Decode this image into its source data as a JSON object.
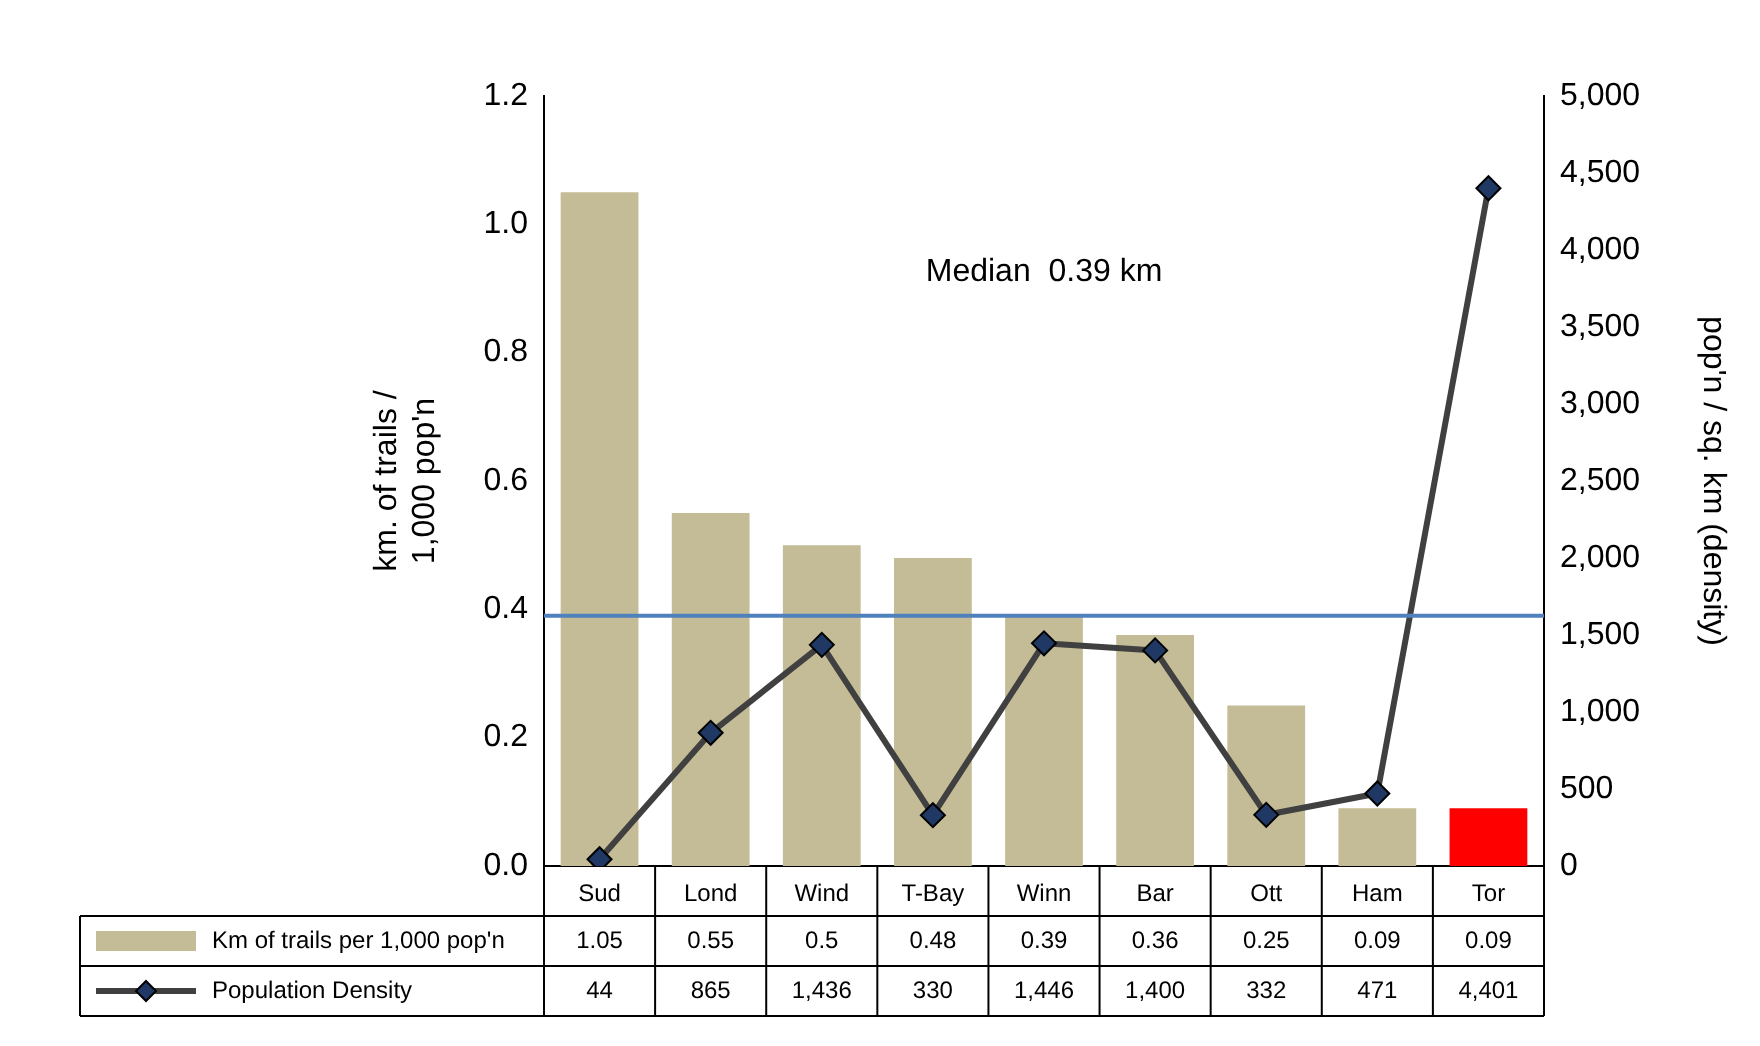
{
  "chart_data": {
    "type": "bar",
    "categories": [
      "Sud",
      "Lond",
      "Wind",
      "T-Bay",
      "Winn",
      "Bar",
      "Ott",
      "Ham",
      "Tor"
    ],
    "ylabel": "km. of trails /\n1,000 pop'n",
    "y2label": "pop'n / sq. km (density)",
    "series": [
      {
        "name": "Km of trails per 1,000 pop'n",
        "color": "#c4bc96",
        "colors": [
          "#c4bc96",
          "#c4bc96",
          "#c4bc96",
          "#c4bc96",
          "#c4bc96",
          "#c4bc96",
          "#c4bc96",
          "#c4bc96",
          "#ff0000"
        ],
        "values": [
          1.05,
          0.55,
          0.5,
          0.48,
          0.39,
          0.36,
          0.25,
          0.09,
          0.09
        ],
        "value_labels": [
          "1.05",
          "0.55",
          "0.5",
          "0.48",
          "0.39",
          "0.36",
          "0.25",
          "0.09",
          "0.09"
        ]
      },
      {
        "type": "line",
        "name": "Population Density",
        "color": "#404040",
        "axis": "y2",
        "marker": "diamond",
        "values": [
          44,
          865,
          1436,
          330,
          1446,
          1400,
          332,
          471,
          4401
        ],
        "value_labels": [
          "44",
          "865",
          "1,436",
          "330",
          "1,446",
          "1,400",
          "332",
          "471",
          "4,401"
        ]
      }
    ],
    "ylim": [
      0,
      1.2
    ],
    "yticks": [
      {
        "value": 0,
        "label": "0.0"
      },
      {
        "value": 0.2,
        "label": "0.2"
      },
      {
        "value": 0.4,
        "label": "0.4"
      },
      {
        "value": 0.6,
        "label": "0.6"
      },
      {
        "value": 0.8,
        "label": "0.8"
      },
      {
        "value": 1.0,
        "label": "1.0"
      },
      {
        "value": 1.2,
        "label": "1.2"
      }
    ],
    "y2lim": [
      0,
      5000
    ],
    "y2ticks": [
      0,
      500,
      {
        "value": 1000,
        "label": "1,000"
      },
      {
        "value": 1500,
        "label": "1,500"
      },
      {
        "value": 2000,
        "label": "2,000"
      },
      {
        "value": 2500,
        "label": "2,500"
      },
      {
        "value": 3000,
        "label": "3,000"
      },
      {
        "value": 3500,
        "label": "3,500"
      },
      {
        "value": 4000,
        "label": "4,000"
      },
      {
        "value": 4500,
        "label": "4,500"
      },
      {
        "value": 5000,
        "label": "5,000"
      }
    ],
    "ref_lines": [
      {
        "axis": "y",
        "value": 0.39,
        "color": "#4f81bd"
      }
    ],
    "annotations": [
      "Median  0.39 km"
    ],
    "legend": "bottom",
    "data_labels": true,
    "grid": false
  }
}
